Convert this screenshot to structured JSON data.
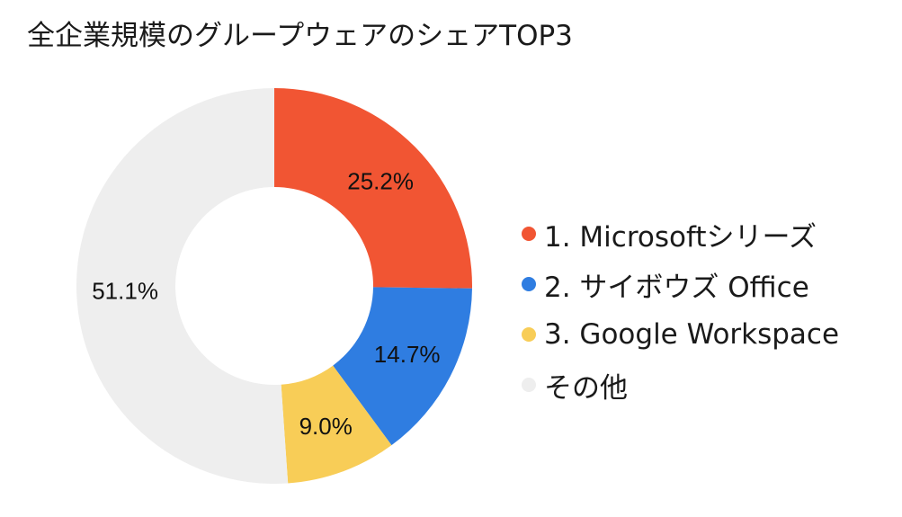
{
  "chart_data": {
    "type": "pie",
    "variant": "donut",
    "title": "全企業規模のグループウェアのシェアTOP3",
    "unit": "%",
    "start_angle_deg": 0,
    "direction": "clockwise",
    "legend_position": "right",
    "series": [
      {
        "name": "1. Microsoftシリーズ",
        "value": 25.2,
        "label": "25.2%",
        "color": "#F15533"
      },
      {
        "name": "2. サイボウズ Office",
        "value": 14.7,
        "label": "14.7%",
        "color": "#2F7DE1"
      },
      {
        "name": "3. Google Workspace",
        "value": 9.0,
        "label": "9.0%",
        "color": "#F8CD57"
      },
      {
        "name": "その他",
        "value": 51.1,
        "label": "51.1%",
        "color": "#EEEEEE"
      }
    ]
  }
}
